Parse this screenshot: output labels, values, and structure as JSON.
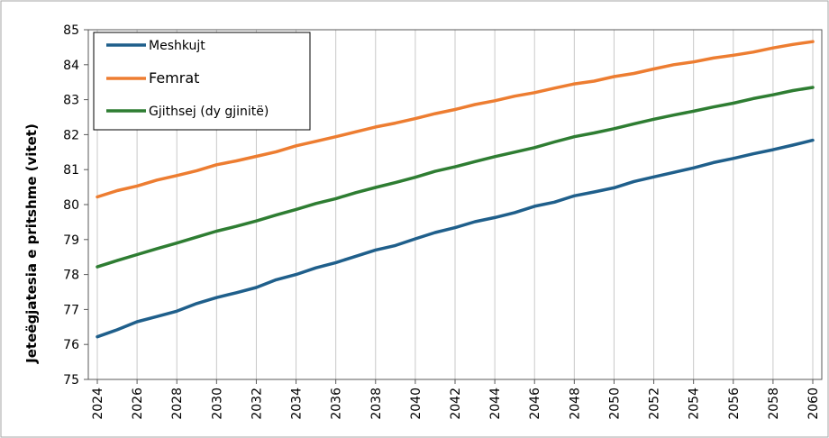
{
  "chart_data": {
    "type": "line",
    "title": "",
    "xlabel": "",
    "ylabel": "Jeteëgjatesia e pritshme (vitet)",
    "x": [
      2024,
      2025,
      2026,
      2027,
      2028,
      2029,
      2030,
      2031,
      2032,
      2033,
      2034,
      2035,
      2036,
      2037,
      2038,
      2039,
      2040,
      2041,
      2042,
      2043,
      2044,
      2045,
      2046,
      2047,
      2048,
      2049,
      2050,
      2051,
      2052,
      2053,
      2054,
      2055,
      2056,
      2057,
      2058,
      2059,
      2060
    ],
    "x_tick_labels": [
      "2024",
      "2026",
      "2028",
      "2030",
      "2032",
      "2034",
      "2036",
      "2038",
      "2040",
      "2042",
      "2044",
      "2046",
      "2048",
      "2050",
      "2052",
      "2054",
      "2056",
      "2058",
      "2060"
    ],
    "ylim": [
      75,
      85
    ],
    "y_ticks": [
      75,
      76,
      77,
      78,
      79,
      80,
      81,
      82,
      83,
      84,
      85
    ],
    "grid": {
      "vertical": true,
      "horizontal": false
    },
    "legend_position": "top-left",
    "series": [
      {
        "name": "Meshkujt",
        "color": "#1F5F8B",
        "values": [
          76.22,
          76.42,
          76.65,
          76.8,
          76.95,
          77.17,
          77.34,
          77.48,
          77.63,
          77.85,
          78.0,
          78.19,
          78.34,
          78.52,
          78.7,
          78.83,
          79.02,
          79.2,
          79.34,
          79.51,
          79.63,
          79.77,
          79.95,
          80.07,
          80.25,
          80.36,
          80.48,
          80.66,
          80.79,
          80.92,
          81.05,
          81.2,
          81.32,
          81.45,
          81.57,
          81.7,
          81.84
        ]
      },
      {
        "name": "Femrat",
        "color": "#ED7D31",
        "values": [
          80.22,
          80.4,
          80.53,
          80.7,
          80.83,
          80.97,
          81.14,
          81.25,
          81.38,
          81.51,
          81.68,
          81.81,
          81.94,
          82.08,
          82.22,
          82.33,
          82.46,
          82.6,
          82.72,
          82.86,
          82.97,
          83.1,
          83.2,
          83.33,
          83.45,
          83.53,
          83.66,
          83.75,
          83.88,
          84.0,
          84.08,
          84.19,
          84.27,
          84.36,
          84.48,
          84.58,
          84.66
        ]
      },
      {
        "name": "Gjithsej (dy gjinitë)",
        "color": "#2E7D32",
        "values": [
          78.22,
          78.4,
          78.57,
          78.74,
          78.9,
          79.07,
          79.24,
          79.38,
          79.53,
          79.7,
          79.86,
          80.03,
          80.17,
          80.34,
          80.49,
          80.63,
          80.78,
          80.95,
          81.08,
          81.23,
          81.37,
          81.5,
          81.63,
          81.79,
          81.94,
          82.05,
          82.17,
          82.31,
          82.44,
          82.56,
          82.67,
          82.79,
          82.9,
          83.03,
          83.14,
          83.26,
          83.35
        ]
      }
    ]
  }
}
